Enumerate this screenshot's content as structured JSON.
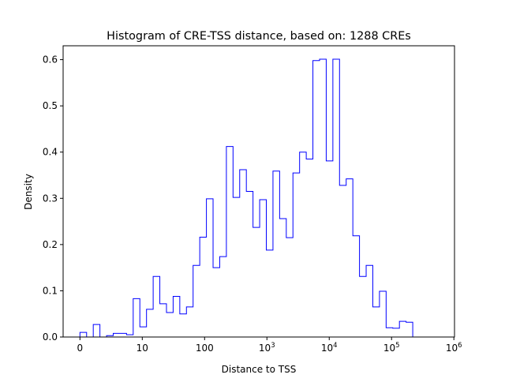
{
  "chart_data": {
    "type": "histogram",
    "title": "Histogram of CRE-TSS distance, based on: 1288 CREs",
    "xlabel": "Distance to TSS",
    "ylabel": "Density",
    "xscale": "symlog",
    "xlim_symlog": [
      -0.27,
      6.01
    ],
    "bin_range_symlog": [
      0,
      5.34
    ],
    "ylim": [
      0,
      0.63
    ],
    "x_ticks": [
      {
        "t": 0,
        "label": "0"
      },
      {
        "t": 1,
        "label": "10"
      },
      {
        "t": 2,
        "label": "100"
      },
      {
        "t": 3,
        "label": "10^3"
      },
      {
        "t": 4,
        "label": "10^4"
      },
      {
        "t": 5,
        "label": "10^5"
      },
      {
        "t": 6,
        "label": "10^6"
      }
    ],
    "y_ticks": [
      "0.0",
      "0.1",
      "0.2",
      "0.3",
      "0.4",
      "0.5",
      "0.6"
    ],
    "y_tick_values": [
      0,
      0.1,
      0.2,
      0.3,
      0.4,
      0.5,
      0.6
    ],
    "histtype": "step",
    "color": "#0000ff",
    "values": [
      0.01,
      0,
      0.027,
      0,
      0.003,
      0.008,
      0.008,
      0.005,
      0.083,
      0.022,
      0.06,
      0.131,
      0.072,
      0.053,
      0.088,
      0.05,
      0.065,
      0.155,
      0.216,
      0.299,
      0.15,
      0.174,
      0.412,
      0.302,
      0.362,
      0.315,
      0.237,
      0.297,
      0.188,
      0.359,
      0.256,
      0.215,
      0.355,
      0.4,
      0.385,
      0.598,
      0.601,
      0.381,
      0.601,
      0.328,
      0.342,
      0.219,
      0.131,
      0.155,
      0.065,
      0.099,
      0.02,
      0.019,
      0.034,
      0.032
    ]
  }
}
